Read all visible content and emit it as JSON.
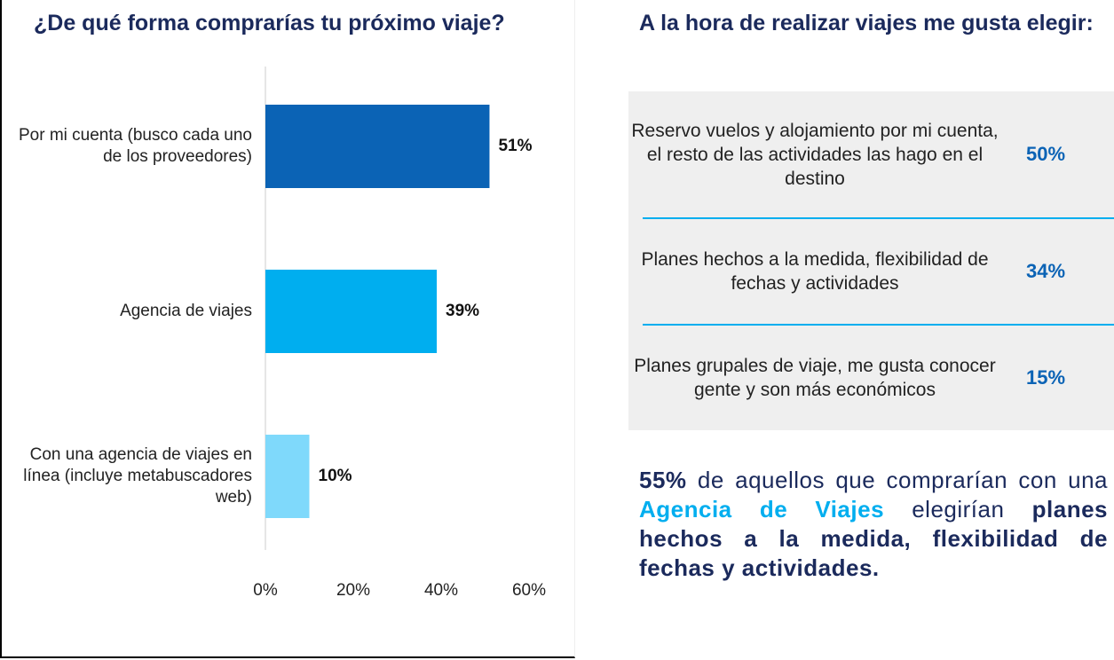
{
  "chart_data": {
    "type": "bar",
    "orientation": "horizontal",
    "title": "¿De qué forma comprarías tu próximo viaje?",
    "categories": [
      "Por mi cuenta (busco cada uno de los proveedores)",
      "Agencia de viajes",
      "Con una agencia de viajes en línea (incluye metabuscadores web)"
    ],
    "values": [
      51,
      39,
      10
    ],
    "value_labels": [
      "51%",
      "39%",
      "10%"
    ],
    "colors": [
      "#0b63b5",
      "#00aeef",
      "#7fd9fb"
    ],
    "xlim": [
      0,
      60
    ],
    "xticks": [
      {
        "value": 0,
        "label": "0%"
      },
      {
        "value": 20,
        "label": "20%"
      },
      {
        "value": 40,
        "label": "40%"
      },
      {
        "value": 60,
        "label": "60%"
      }
    ]
  },
  "panel": {
    "title": "A la hora de realizar viajes me gusta elegir:",
    "rows": [
      {
        "text": "Reservo vuelos y alojamiento por mi cuenta, el resto de las actividades las hago en el destino",
        "value": "50%"
      },
      {
        "text": "Planes hechos a la medida, flexibilidad de fechas y actividades",
        "value": "34%"
      },
      {
        "text": "Planes grupales de viaje, me gusta conocer gente y son más económicos",
        "value": "15%"
      }
    ],
    "note": [
      "55%",
      " de aquellos que comprarían con una ",
      "Agencia de Viajes",
      " elegirían ",
      "planes hechos a la medida, flexibilidad de fechas y actividades."
    ]
  }
}
